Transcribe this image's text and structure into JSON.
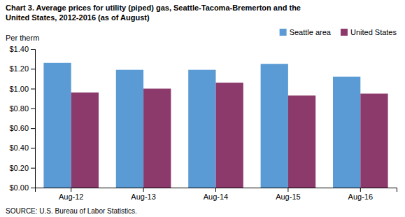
{
  "chart_data": {
    "type": "bar",
    "title": "Chart 3. Average prices for utility (piped) gas, Seattle-Tacoma-Bremerton and the",
    "subtitle": "United States, 2012-2016  (as of August)",
    "ylabel": "Per therm",
    "source": "SOURCE: U.S. Bureau of Labor Statistics.",
    "categories": [
      "Aug-12",
      "Aug-13",
      "Aug-14",
      "Aug-15",
      "Aug-16"
    ],
    "series": [
      {
        "name": "Seattle area",
        "color": "#5B9BD5",
        "values": [
          1.26,
          1.19,
          1.19,
          1.25,
          1.12
        ]
      },
      {
        "name": "United States",
        "color": "#8B3A6B",
        "values": [
          0.96,
          1.0,
          1.06,
          0.93,
          0.95
        ]
      }
    ],
    "ylim": [
      0,
      1.4
    ],
    "yticks": [
      {
        "value": 0.0,
        "label": "$0.00"
      },
      {
        "value": 0.2,
        "label": "$0.20"
      },
      {
        "value": 0.4,
        "label": "$0.40"
      },
      {
        "value": 0.6,
        "label": "$0.60"
      },
      {
        "value": 0.8,
        "label": "$0.80"
      },
      {
        "value": 1.0,
        "label": "$1.00"
      },
      {
        "value": 1.2,
        "label": "$1.20"
      },
      {
        "value": 1.4,
        "label": "$1.40"
      }
    ],
    "grid": false,
    "legend": "upper right"
  }
}
